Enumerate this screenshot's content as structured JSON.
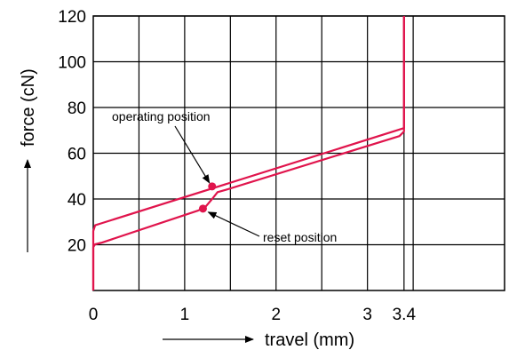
{
  "chart_data": {
    "type": "line",
    "xlabel": "travel (mm)",
    "ylabel": "force (cN)",
    "xlim": [
      0,
      4.5
    ],
    "ylim": [
      0,
      120
    ],
    "x_ticks": [
      {
        "value": 0,
        "label": "0"
      },
      {
        "value": 1,
        "label": "1"
      },
      {
        "value": 2,
        "label": "2"
      },
      {
        "value": 3,
        "label": "3"
      },
      {
        "value": 3.4,
        "label": "3.4"
      }
    ],
    "y_ticks": [
      {
        "value": 20,
        "label": "20"
      },
      {
        "value": 40,
        "label": "40"
      },
      {
        "value": 60,
        "label": "60"
      },
      {
        "value": 80,
        "label": "80"
      },
      {
        "value": 100,
        "label": "100"
      },
      {
        "value": 120,
        "label": "120"
      }
    ],
    "x_gridlines": [
      0.5,
      1,
      1.5,
      2,
      2.5,
      3,
      3.5
    ],
    "y_gridlines": [
      20,
      40,
      60,
      80,
      100,
      120
    ],
    "grid": true,
    "line_color": "#e0144c",
    "series": [
      {
        "points": [
          [
            0,
            0
          ],
          [
            0,
            26
          ],
          [
            0.02,
            28.5
          ],
          [
            0.1,
            29.5
          ],
          [
            3.4,
            71
          ],
          [
            3.4,
            120
          ]
        ]
      },
      {
        "points": [
          [
            0,
            0
          ],
          [
            0,
            19
          ],
          [
            0.02,
            20.2
          ],
          [
            0.1,
            21
          ],
          [
            1.15,
            35
          ],
          [
            1.22,
            36.2
          ],
          [
            1.3,
            40
          ],
          [
            1.36,
            43
          ],
          [
            1.45,
            44
          ],
          [
            3.35,
            67.5
          ],
          [
            3.4,
            69.5
          ],
          [
            3.4,
            120
          ]
        ]
      }
    ],
    "markers": [
      {
        "x": 1.3,
        "y": 45.5
      },
      {
        "x": 1.2,
        "y": 35.8
      }
    ],
    "annotations": [
      {
        "text": "operating position",
        "x": 1.3,
        "y": 45.5
      },
      {
        "text": "reset position",
        "x": 1.2,
        "y": 35.8
      }
    ]
  }
}
